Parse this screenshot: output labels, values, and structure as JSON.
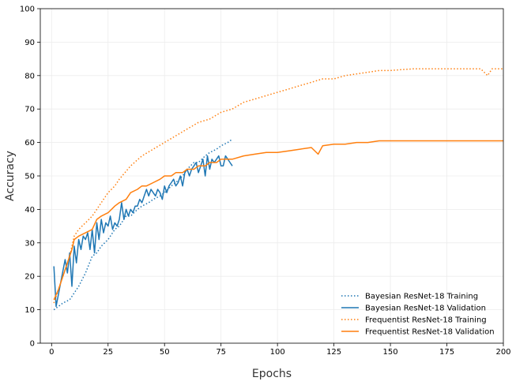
{
  "chart_data": {
    "type": "line",
    "title": "",
    "xlabel": "Epochs",
    "ylabel": "Accuracy",
    "xlim": [
      -5,
      200
    ],
    "ylim": [
      0,
      100
    ],
    "xticks": [
      0,
      25,
      50,
      75,
      100,
      125,
      150,
      175,
      200
    ],
    "yticks": [
      0,
      10,
      20,
      30,
      40,
      50,
      60,
      70,
      80,
      90,
      100
    ],
    "grid": true,
    "legend_position": "bottom-right",
    "series": [
      {
        "name": "Bayesian ResNet-18 Training",
        "color": "#1f77b4",
        "style": "dotted",
        "x": [
          1,
          3,
          5,
          8,
          10,
          12,
          15,
          18,
          20,
          22,
          25,
          28,
          30,
          33,
          35,
          38,
          40,
          43,
          45,
          48,
          50,
          53,
          55,
          58,
          60,
          63,
          65,
          68,
          70,
          73,
          75,
          78,
          80
        ],
        "y": [
          10,
          11,
          12,
          13,
          15,
          17,
          21,
          26,
          27,
          29,
          31,
          34,
          35,
          38,
          38,
          40,
          41,
          42,
          43,
          44,
          45,
          47,
          48,
          50,
          52,
          54,
          54,
          56,
          57,
          58,
          59,
          60,
          61
        ]
      },
      {
        "name": "Bayesian ResNet-18 Validation",
        "color": "#1f77b4",
        "style": "solid",
        "x": [
          1,
          2,
          4,
          6,
          7,
          8,
          9,
          10,
          11,
          12,
          13,
          14,
          15,
          16,
          17,
          18,
          19,
          20,
          21,
          22,
          23,
          24,
          25,
          26,
          27,
          28,
          29,
          30,
          31,
          32,
          33,
          34,
          35,
          36,
          37,
          38,
          39,
          40,
          41,
          42,
          43,
          44,
          45,
          46,
          47,
          48,
          49,
          50,
          51,
          52,
          53,
          54,
          55,
          56,
          57,
          58,
          59,
          60,
          61,
          62,
          63,
          64,
          65,
          66,
          67,
          68,
          69,
          70,
          71,
          72,
          73,
          74,
          75,
          76,
          77,
          78,
          79,
          80
        ],
        "y": [
          23,
          11,
          18,
          25,
          21,
          27,
          17,
          29,
          24,
          31,
          28,
          32,
          31,
          33,
          28,
          34,
          27,
          36,
          31,
          37,
          33,
          36,
          35,
          38,
          34,
          36,
          35,
          37,
          42,
          37,
          40,
          38,
          40,
          39,
          41,
          41,
          43,
          42,
          44,
          46,
          44,
          46,
          45,
          44,
          46,
          45,
          43,
          47,
          45,
          47,
          48,
          49,
          47,
          48,
          50,
          47,
          51,
          52,
          50,
          52,
          53,
          54,
          51,
          53,
          55,
          50,
          56,
          52,
          55,
          54,
          55,
          56,
          53,
          53,
          56,
          55,
          54,
          53
        ]
      },
      {
        "name": "Frequentist ResNet-18 Training",
        "color": "#ff7f0e",
        "style": "dotted",
        "x": [
          1,
          3,
          5,
          8,
          10,
          12,
          15,
          18,
          20,
          23,
          25,
          28,
          30,
          35,
          40,
          45,
          50,
          55,
          60,
          65,
          70,
          75,
          80,
          85,
          90,
          95,
          100,
          105,
          110,
          115,
          120,
          125,
          130,
          135,
          140,
          145,
          150,
          155,
          160,
          165,
          170,
          175,
          180,
          185,
          190,
          193,
          195,
          200
        ],
        "y": [
          12,
          16,
          20,
          26,
          32,
          34,
          36,
          38,
          40,
          43,
          45,
          47,
          49,
          53,
          56,
          58,
          60,
          62,
          64,
          66,
          67,
          69,
          70,
          72,
          73,
          74,
          75,
          76,
          77,
          78,
          79,
          79,
          80,
          80.5,
          81,
          81.5,
          81.5,
          81.8,
          82,
          82,
          82,
          82,
          82,
          82,
          82,
          80,
          82,
          82
        ]
      },
      {
        "name": "Frequentist ResNet-18 Validation",
        "color": "#ff7f0e",
        "style": "solid",
        "x": [
          1,
          3,
          5,
          7,
          9,
          10,
          12,
          15,
          18,
          20,
          22,
          25,
          28,
          30,
          33,
          35,
          38,
          40,
          42,
          45,
          48,
          50,
          53,
          55,
          58,
          60,
          63,
          65,
          68,
          70,
          73,
          75,
          78,
          80,
          85,
          90,
          95,
          100,
          105,
          110,
          115,
          118,
          120,
          125,
          130,
          135,
          140,
          145,
          150,
          155,
          160,
          165,
          170,
          175,
          180,
          185,
          190,
          195,
          200
        ],
        "y": [
          13,
          16,
          20,
          24,
          28,
          31,
          32,
          33,
          34,
          37,
          38,
          39,
          41,
          42,
          43,
          45,
          46,
          47,
          47,
          48,
          49,
          50,
          50,
          51,
          51,
          52,
          52,
          53,
          53,
          54,
          54,
          55,
          55,
          55,
          56,
          56.5,
          57,
          57,
          57.5,
          58,
          58.5,
          56.5,
          59,
          59.5,
          59.5,
          60,
          60,
          60.5,
          60.5,
          60.5,
          60.5,
          60.5,
          60.5,
          60.5,
          60.5,
          60.5,
          60.5,
          60.5,
          60.5
        ]
      }
    ]
  }
}
